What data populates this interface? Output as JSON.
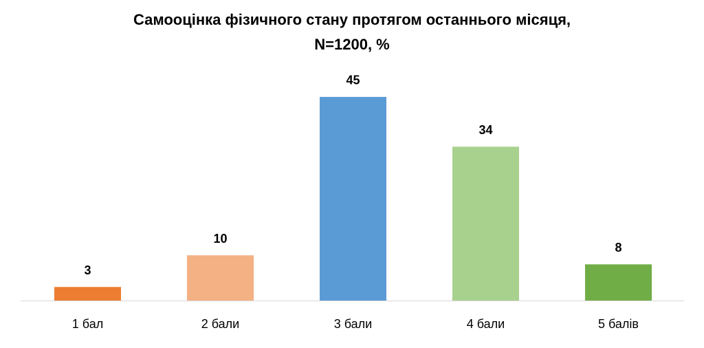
{
  "chart_data": {
    "type": "bar",
    "title": [
      "Самооцінка фізичного стану протягом останнього місяця,",
      "N=1200, %"
    ],
    "categories": [
      "1 бал",
      "2 бали",
      "3 бали",
      "4 бали",
      "5 балів"
    ],
    "values": [
      3,
      10,
      45,
      34,
      8
    ],
    "colors": [
      "#ed7d31",
      "#f4b183",
      "#5b9bd5",
      "#a9d18e",
      "#70ad47"
    ],
    "ylim": [
      0,
      50
    ]
  }
}
